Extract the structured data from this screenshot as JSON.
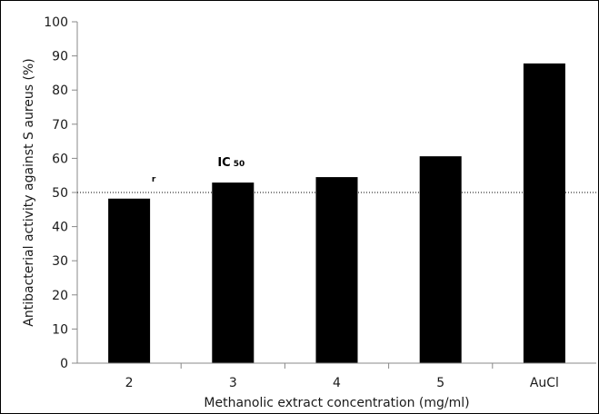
{
  "chart_data": {
    "type": "bar",
    "categories": [
      "2",
      "3",
      "4",
      "5",
      "AuCl"
    ],
    "values": [
      48.2,
      52.9,
      54.5,
      60.6,
      87.8
    ],
    "xlabel": "Methanolic extract concentration (mg/ml)",
    "ylabel": "Antibacterial activity  against S aureus (%)",
    "ylim": [
      0,
      100
    ],
    "yticks": [
      0,
      10,
      20,
      30,
      40,
      50,
      60,
      70,
      80,
      90,
      100
    ],
    "grid": false,
    "bar_color": "#000000",
    "reference_line": {
      "y": 50,
      "style": "dotted",
      "color": "#000000"
    },
    "annotations": [
      {
        "text": "IC",
        "subscript": "50",
        "category": "3"
      },
      {
        "text": "r",
        "category": "2"
      }
    ]
  }
}
